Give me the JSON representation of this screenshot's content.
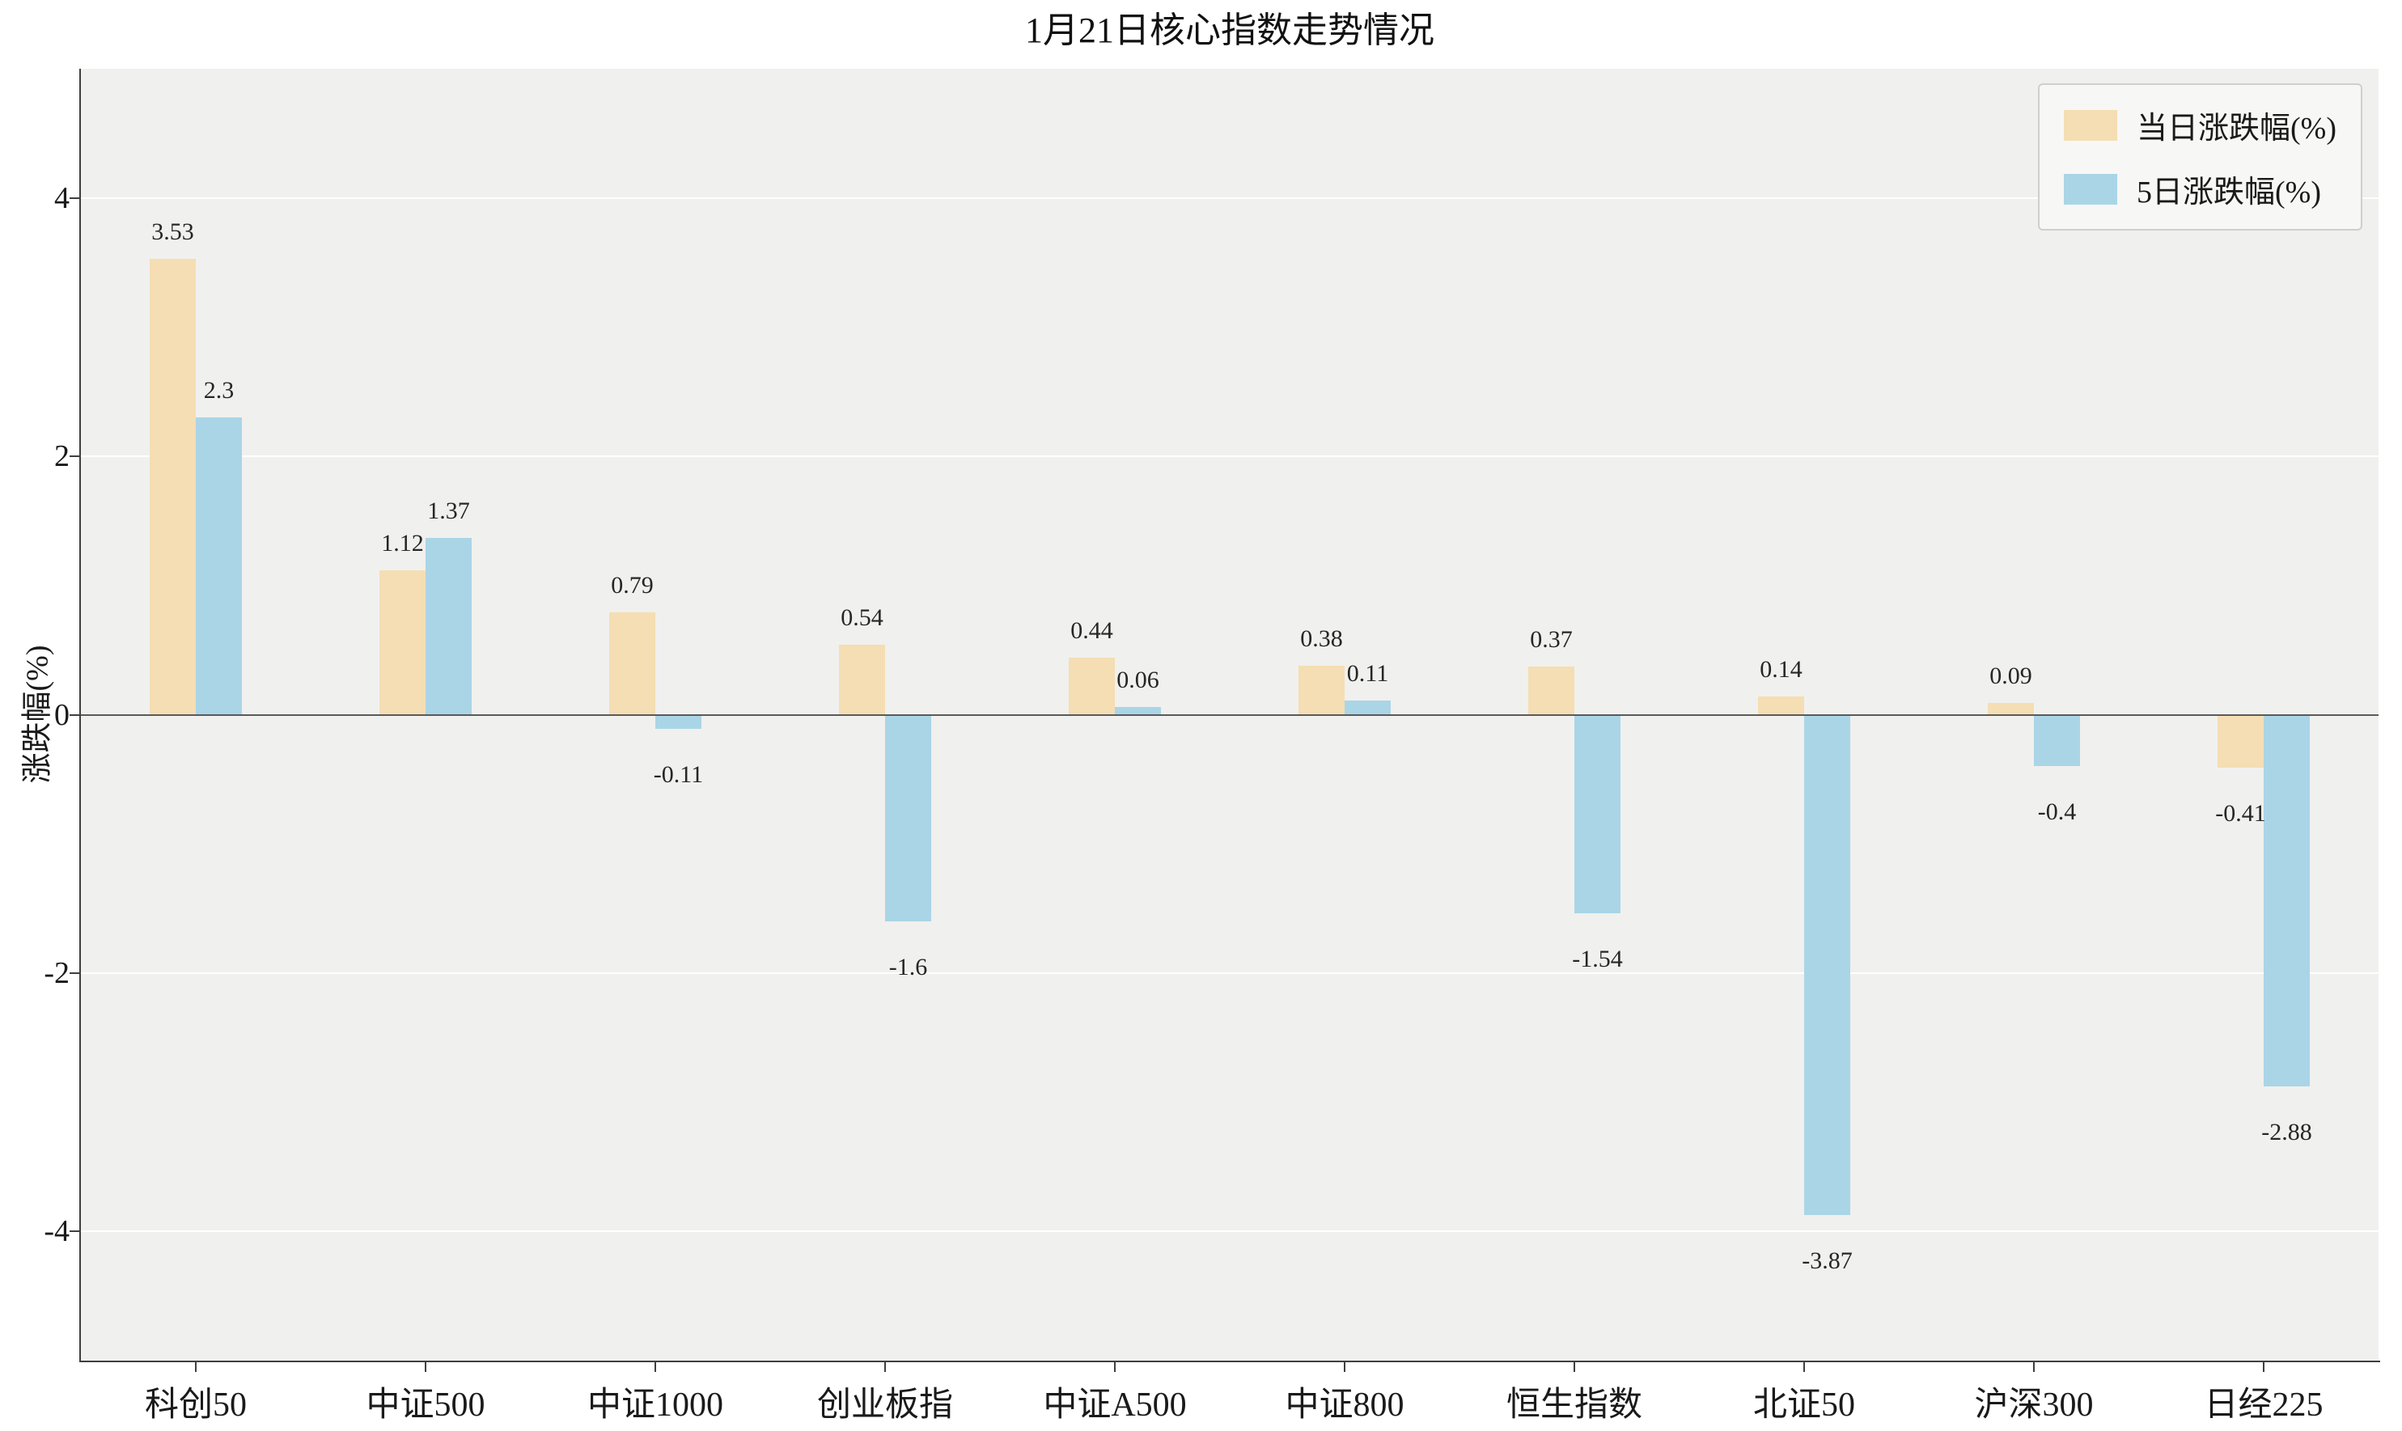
{
  "chart_data": {
    "type": "bar",
    "title": "1月21日核心指数走势情况",
    "xlabel": "",
    "ylabel": "涨跌幅(%)",
    "categories": [
      "科创50",
      "中证500",
      "中证1000",
      "创业板指",
      "中证A500",
      "中证800",
      "恒生指数",
      "北证50",
      "沪深300",
      "日经225"
    ],
    "series": [
      {
        "name": "当日涨跌幅(%)",
        "color": "#f5deb3",
        "values": [
          3.53,
          1.12,
          0.79,
          0.54,
          0.44,
          0.38,
          0.37,
          0.14,
          0.09,
          -0.41
        ]
      },
      {
        "name": "5日涨跌幅(%)",
        "color": "#aad5e6",
        "values": [
          2.3,
          1.37,
          -0.11,
          -1.6,
          0.06,
          0.11,
          -1.54,
          -3.87,
          -0.4,
          -2.88
        ]
      }
    ],
    "ylim": [
      -5,
      5
    ],
    "yticks": [
      4,
      2,
      0,
      -2,
      -4
    ],
    "grid": true,
    "legend_position": "upper right",
    "colors": {
      "plot_background": "#f0f0ee",
      "page_background": "#ffffff",
      "grid_color": "#ffffff",
      "axis_color": "#3f3f3f",
      "zero_line": "#5a5a5a",
      "legend_background": "#f7f7f5",
      "legend_border": "#cfcfcd",
      "text": "#1a1a1a"
    }
  }
}
